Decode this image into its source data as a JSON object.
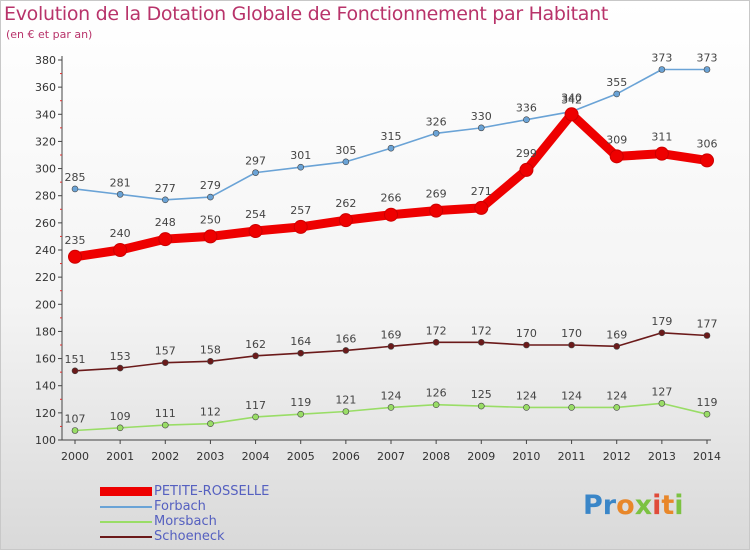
{
  "header": {
    "title": "Evolution de la Dotation Globale de Fonctionnement par Habitant",
    "subtitle": "(en € et par an)"
  },
  "logo": {
    "text": "Proxiti"
  },
  "chart_data": {
    "type": "line",
    "x": [
      "2000",
      "2001",
      "2002",
      "2003",
      "2004",
      "2005",
      "2006",
      "2007",
      "2008",
      "2009",
      "2010",
      "2011",
      "2012",
      "2013",
      "2014"
    ],
    "ylim": [
      100,
      380
    ],
    "yticks": [
      100,
      120,
      140,
      160,
      180,
      200,
      220,
      240,
      260,
      280,
      300,
      320,
      340,
      360,
      380
    ],
    "grid": false,
    "legend_position": "bottom-left",
    "series": [
      {
        "name": "PETITE-ROSSELLE",
        "color": "#ee0000",
        "values": [
          235,
          240,
          248,
          250,
          254,
          257,
          262,
          266,
          269,
          271,
          299,
          340,
          309,
          311,
          306
        ]
      },
      {
        "name": "Forbach",
        "color": "#6aa3d6",
        "values": [
          285,
          281,
          277,
          279,
          297,
          301,
          305,
          315,
          326,
          330,
          336,
          342,
          355,
          373,
          373
        ]
      },
      {
        "name": "Morsbach",
        "color": "#99dd66",
        "values": [
          107,
          109,
          111,
          112,
          117,
          119,
          121,
          124,
          126,
          125,
          124,
          124,
          124,
          127,
          119
        ]
      },
      {
        "name": "Schoeneck",
        "color": "#6b1a1a",
        "values": [
          151,
          153,
          157,
          158,
          162,
          164,
          166,
          169,
          172,
          172,
          170,
          170,
          169,
          179,
          177
        ]
      }
    ]
  }
}
